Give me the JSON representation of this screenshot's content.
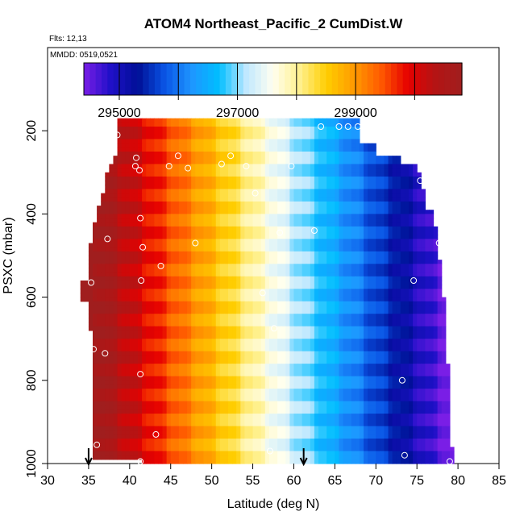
{
  "chart_data": {
    "type": "heatmap",
    "title": "ATOM4 Northeast_Pacific_2 CumDist.W",
    "flights_label": "Flts: 12,13",
    "date_label": "MMDD: 0519,0521",
    "xlabel": "Latitude (deg N)",
    "ylabel": "PSXC (mbar)",
    "xlim": [
      30,
      85
    ],
    "ylim": [
      1000,
      0
    ],
    "x_ticks": [
      "30",
      "35",
      "40",
      "45",
      "50",
      "55",
      "60",
      "65",
      "70",
      "75",
      "80",
      "85"
    ],
    "y_ticks": [
      "200",
      "400",
      "600",
      "800",
      "1000"
    ],
    "colorbar": {
      "range": [
        294400,
        300800
      ],
      "tick_labels": [
        "295000",
        "297000",
        "299000"
      ],
      "tick_values": [
        295000,
        297000,
        299000
      ],
      "colors": [
        "#7a1ee6",
        "#1f10c8",
        "#000f96",
        "#0a55e6",
        "#1e96ff",
        "#00beff",
        "#bfe8ff",
        "#fffff0",
        "#fff08c",
        "#ffcd00",
        "#ff9a00",
        "#ff5a00",
        "#e60000",
        "#b41414",
        "#a01e1e"
      ]
    },
    "field": {
      "description_rows_pressure_mbar": [
        170,
        980
      ],
      "hot_side_latitude": 34,
      "cold_side_latitude": 80,
      "tropopause_lat_gradient": "cumulative distance increases from high latitude (cold colors) to low latitude (warm colors)"
    },
    "profile_markers": [
      {
        "lat": 35.0,
        "psxc": 1000
      },
      {
        "lat": 61.2,
        "psxc": 1000
      }
    ],
    "sample_points": [
      {
        "lat": 38.5,
        "psxc": 210
      },
      {
        "lat": 63.3,
        "psxc": 190
      },
      {
        "lat": 65.5,
        "psxc": 190
      },
      {
        "lat": 66.6,
        "psxc": 190
      },
      {
        "lat": 67.8,
        "psxc": 190
      },
      {
        "lat": 40.8,
        "psxc": 265
      },
      {
        "lat": 40.7,
        "psxc": 285
      },
      {
        "lat": 41.2,
        "psxc": 295
      },
      {
        "lat": 44.8,
        "psxc": 285
      },
      {
        "lat": 45.9,
        "psxc": 260
      },
      {
        "lat": 47.1,
        "psxc": 290
      },
      {
        "lat": 51.2,
        "psxc": 280
      },
      {
        "lat": 52.3,
        "psxc": 260
      },
      {
        "lat": 54.2,
        "psxc": 285
      },
      {
        "lat": 59.7,
        "psxc": 285
      },
      {
        "lat": 55.3,
        "psxc": 350
      },
      {
        "lat": 75.4,
        "psxc": 320
      },
      {
        "lat": 41.3,
        "psxc": 410
      },
      {
        "lat": 62.5,
        "psxc": 440
      },
      {
        "lat": 58.3,
        "psxc": 445
      },
      {
        "lat": 37.3,
        "psxc": 460
      },
      {
        "lat": 41.6,
        "psxc": 480
      },
      {
        "lat": 48.0,
        "psxc": 470
      },
      {
        "lat": 77.7,
        "psxc": 470
      },
      {
        "lat": 43.8,
        "psxc": 525
      },
      {
        "lat": 41.4,
        "psxc": 560
      },
      {
        "lat": 35.3,
        "psxc": 565
      },
      {
        "lat": 74.6,
        "psxc": 560
      },
      {
        "lat": 56.2,
        "psxc": 590
      },
      {
        "lat": 57.6,
        "psxc": 675
      },
      {
        "lat": 35.6,
        "psxc": 725
      },
      {
        "lat": 37.0,
        "psxc": 735
      },
      {
        "lat": 41.3,
        "psxc": 785
      },
      {
        "lat": 73.2,
        "psxc": 800
      },
      {
        "lat": 43.2,
        "psxc": 930
      },
      {
        "lat": 36.0,
        "psxc": 955
      },
      {
        "lat": 57.1,
        "psxc": 970
      },
      {
        "lat": 73.5,
        "psxc": 980
      },
      {
        "lat": 41.3,
        "psxc": 995
      },
      {
        "lat": 79.0,
        "psxc": 995
      }
    ]
  }
}
